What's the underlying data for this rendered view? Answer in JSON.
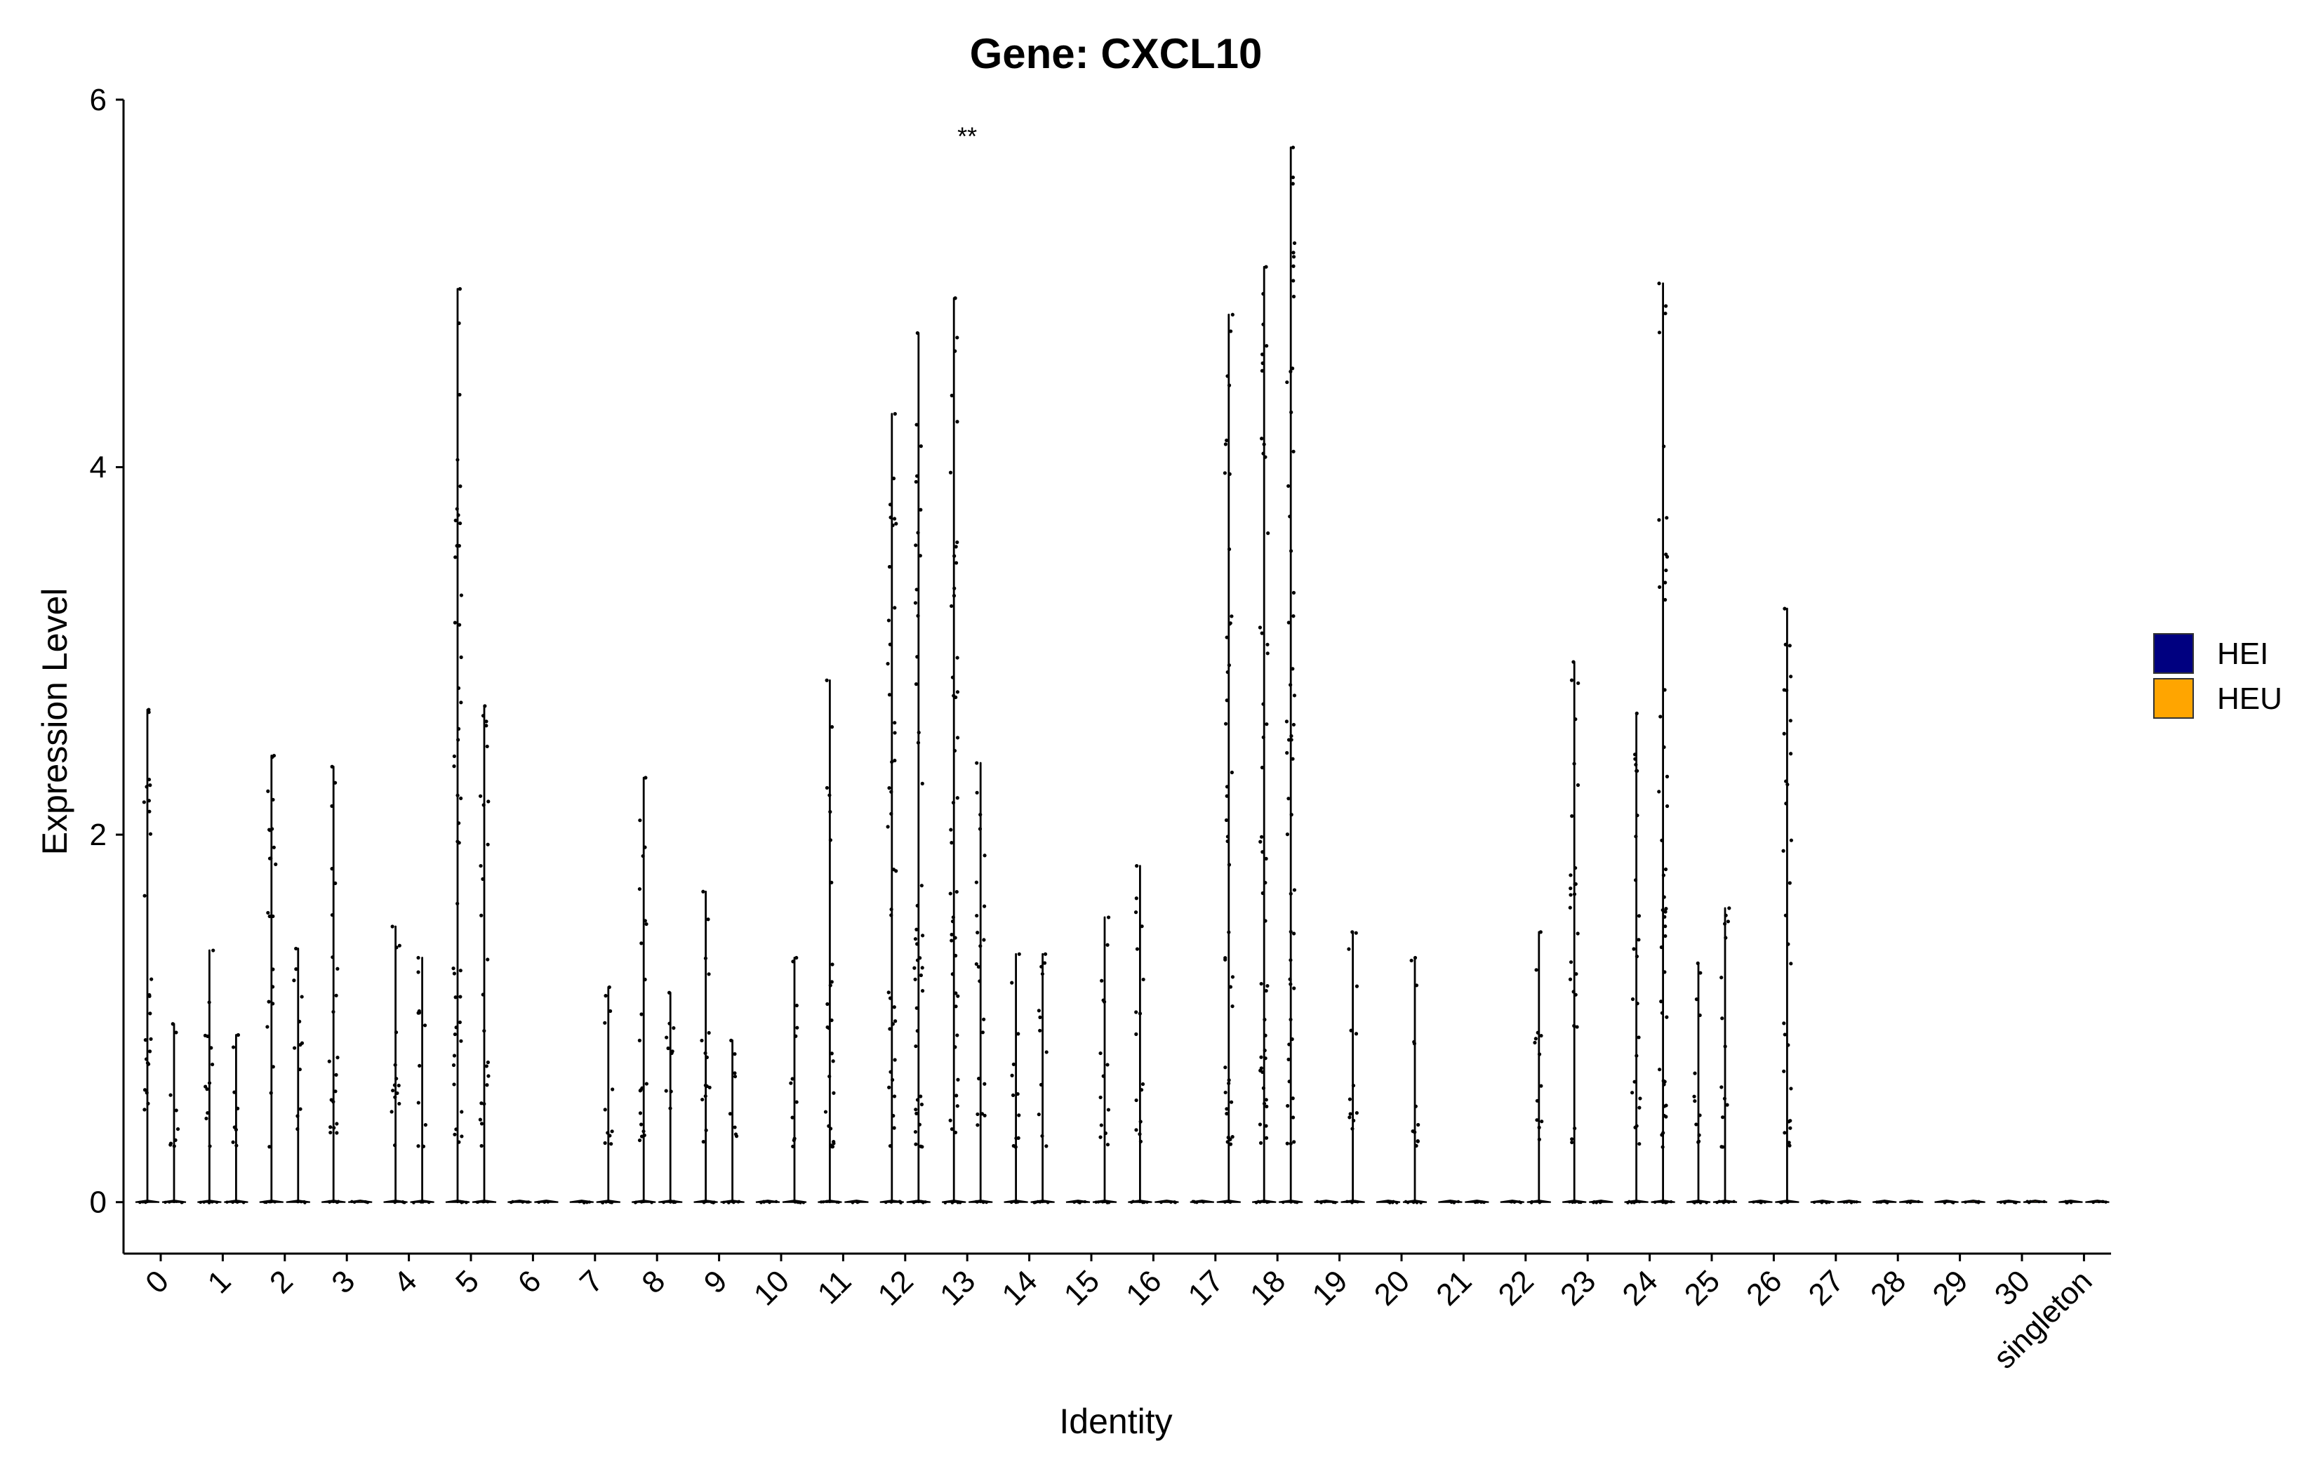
{
  "chart_data": {
    "type": "violin",
    "title": "Gene: CXCL10",
    "xlabel": "Identity",
    "ylabel": "Expression Level",
    "ylim": [
      -0.28,
      6.0
    ],
    "yticks": [
      0,
      2,
      4,
      6
    ],
    "yticklabels": [
      "0",
      "2",
      "4",
      "6"
    ],
    "grid": false,
    "categories": [
      "0",
      "1",
      "2",
      "3",
      "4",
      "5",
      "6",
      "7",
      "8",
      "9",
      "10",
      "11",
      "12",
      "13",
      "14",
      "15",
      "16",
      "17",
      "18",
      "19",
      "20",
      "21",
      "22",
      "23",
      "24",
      "25",
      "26",
      "27",
      "28",
      "29",
      "30",
      "singleton"
    ],
    "legend": {
      "placement": "right",
      "entries": [
        {
          "name": "HEI",
          "color": "#000080"
        },
        {
          "name": "HEU",
          "color": "#FFA500"
        }
      ]
    },
    "series": [
      {
        "name": "HEI",
        "color": "#000080",
        "max_values": [
          2.68,
          1.37,
          2.43,
          2.37,
          1.5,
          4.97,
          0,
          0,
          2.31,
          1.69,
          0,
          2.84,
          4.29,
          4.92,
          1.35,
          0,
          1.83,
          0,
          5.09,
          0,
          0,
          0,
          0,
          2.94,
          2.66,
          1.3,
          0,
          0,
          0,
          0,
          0,
          0
        ]
      },
      {
        "name": "HEU",
        "color": "#FFA500",
        "max_values": [
          0.97,
          0.91,
          1.38,
          0,
          1.33,
          2.7,
          0,
          1.17,
          1.14,
          0.88,
          1.33,
          0,
          4.73,
          2.39,
          1.35,
          1.55,
          0,
          4.83,
          5.74,
          1.47,
          1.33,
          0,
          1.47,
          0,
          5.0,
          1.6,
          3.23,
          0,
          0,
          0,
          0,
          0
        ]
      }
    ],
    "annotations": [
      {
        "text": "**",
        "x": "13",
        "y": 5.8
      }
    ]
  }
}
